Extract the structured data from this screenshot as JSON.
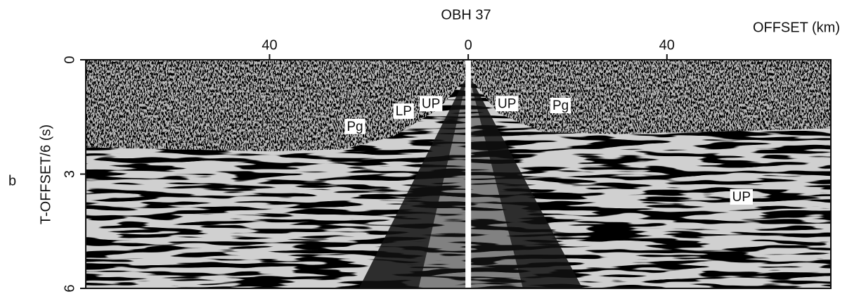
{
  "chart_data": {
    "type": "seismic-section",
    "title": "OBH 37",
    "panel_label": "b",
    "xlabel": "OFFSET (km)",
    "ylabel": "T-OFFSET/6 (s)",
    "xlim": [
      -77,
      73
    ],
    "xticks": [
      {
        "value": -40,
        "label": "40"
      },
      0,
      40
    ],
    "ylim": [
      0,
      6
    ],
    "yticks": [
      0,
      3,
      6
    ],
    "annotations": [
      {
        "text": "Pg",
        "x": -22.8,
        "y": 1.75
      },
      {
        "text": "LP",
        "x": -13,
        "y": 1.35
      },
      {
        "text": "UP",
        "x": -7.5,
        "y": 1.15
      },
      {
        "text": "UP",
        "x": 7.8,
        "y": 1.15
      },
      {
        "text": "Pg",
        "x": 18.6,
        "y": 1.2
      },
      {
        "text": "UP",
        "x": 55,
        "y": 3.6
      }
    ]
  }
}
